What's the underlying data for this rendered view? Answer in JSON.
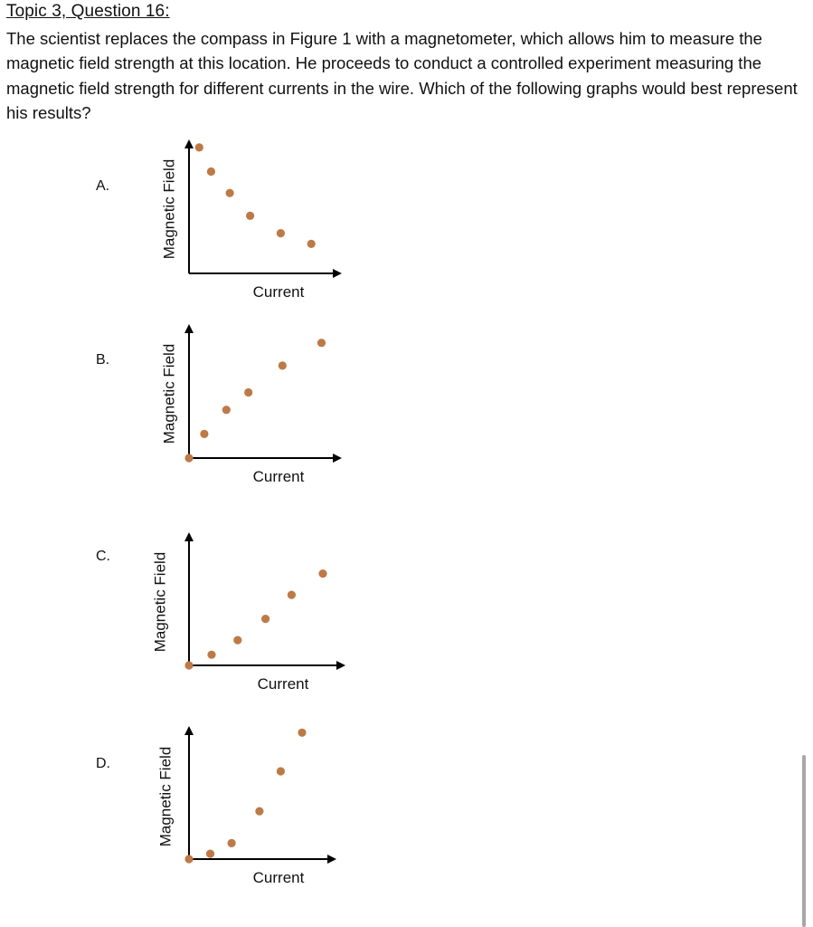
{
  "question": {
    "heading": "Topic 3, Question 16:",
    "text": "The scientist replaces the compass in Figure 1 with a magnetometer, which allows him to measure the magnetic field strength at this location. He proceeds to conduct a controlled experiment measuring the magnetic field strength for different currents in the wire. Which of the following graphs would best represent his results?"
  },
  "colors": {
    "point": "#bd7a47",
    "axis": "#000000",
    "text": "#111111"
  },
  "chart_data": [
    {
      "type": "scatter",
      "option": "A.",
      "title": "",
      "xlabel": "Current",
      "ylabel": "Magnetic Field",
      "x": [
        0.6,
        1.3,
        2.4,
        3.6,
        5.4,
        7.2
      ],
      "y": [
        9.4,
        7.6,
        6.0,
        4.3,
        3.0,
        2.2
      ],
      "xlim": [
        0,
        9
      ],
      "ylim": [
        0,
        10
      ],
      "grid": false
    },
    {
      "type": "scatter",
      "option": "B.",
      "title": "",
      "xlabel": "Current",
      "ylabel": "Magnetic Field",
      "x": [
        0.0,
        0.9,
        2.2,
        3.5,
        5.5,
        7.8
      ],
      "y": [
        0.0,
        1.8,
        3.6,
        4.9,
        6.9,
        8.6
      ],
      "xlim": [
        0,
        9
      ],
      "ylim": [
        0,
        10
      ],
      "grid": false
    },
    {
      "type": "scatter",
      "option": "C.",
      "title": "",
      "xlabel": "Current",
      "ylabel": "Magnetic Field",
      "x": [
        0.0,
        1.3,
        2.8,
        4.4,
        5.9,
        7.7
      ],
      "y": [
        0.0,
        0.8,
        1.9,
        3.5,
        5.3,
        6.9
      ],
      "xlim": [
        0,
        9
      ],
      "ylim": [
        0,
        10
      ],
      "grid": false
    },
    {
      "type": "scatter",
      "option": "D.",
      "title": "",
      "xlabel": "Current",
      "ylabel": "Magnetic Field",
      "x": [
        0.0,
        1.3,
        2.6,
        4.3,
        5.6,
        6.9
      ],
      "y": [
        0.0,
        0.4,
        1.2,
        3.6,
        6.6,
        9.5
      ],
      "xlim": [
        0,
        9
      ],
      "ylim": [
        0,
        10
      ],
      "grid": false
    }
  ]
}
